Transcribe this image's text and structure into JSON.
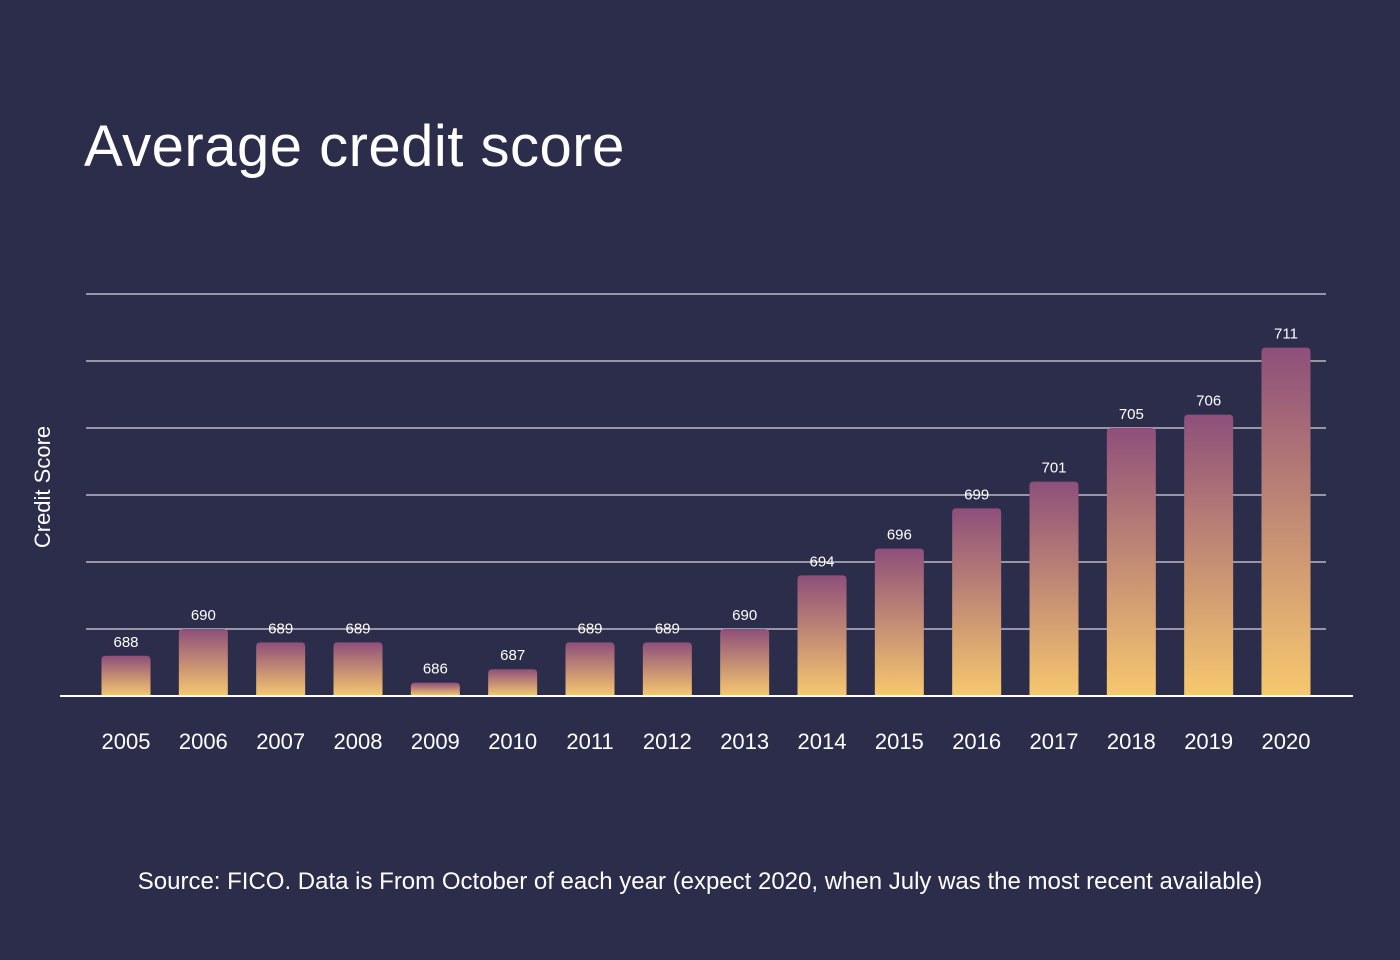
{
  "chart_data": {
    "type": "bar",
    "title": "Average credit score",
    "ylabel": "Credit Score",
    "xlabel": "",
    "categories": [
      "2005",
      "2006",
      "2007",
      "2008",
      "2009",
      "2010",
      "2011",
      "2012",
      "2013",
      "2014",
      "2015",
      "2016",
      "2017",
      "2018",
      "2019",
      "2020"
    ],
    "values": [
      688,
      690,
      689,
      689,
      686,
      687,
      689,
      689,
      690,
      694,
      696,
      699,
      701,
      705,
      706,
      711
    ],
    "ylim": [
      685,
      715
    ],
    "grid": true,
    "legend": "none",
    "source": "Source: FICO. Data is From October of each year (expect 2020, when July was the most recent available)"
  },
  "colors": {
    "background": "#2c2c4b",
    "bar_top": "#8e4f7a",
    "bar_bottom": "#f7c86e",
    "gridline": "#ffffff",
    "text": "#ffffff"
  }
}
